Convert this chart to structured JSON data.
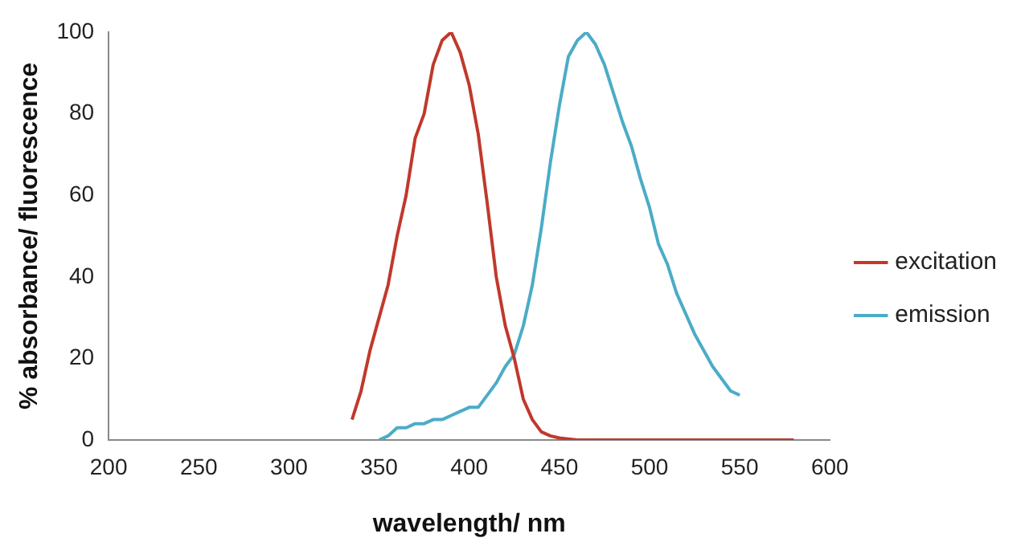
{
  "chart_data": {
    "type": "line",
    "xlabel": "wavelength/ nm",
    "ylabel": "% absorbance/ fluorescence",
    "xlim": [
      200,
      600
    ],
    "xticks": [
      200,
      250,
      300,
      350,
      400,
      450,
      500,
      550,
      600
    ],
    "ylim": [
      0,
      100
    ],
    "yticks": [
      0,
      20,
      40,
      60,
      80,
      100
    ],
    "grid": false,
    "legend": "right",
    "marker": "none",
    "line_style": "solid",
    "series": [
      {
        "name": "excitation",
        "color": "#c0392b",
        "x": [
          335,
          340,
          345,
          350,
          355,
          360,
          365,
          370,
          375,
          380,
          385,
          390,
          395,
          400,
          405,
          410,
          415,
          420,
          425,
          430,
          435,
          440,
          445,
          450,
          460,
          500,
          580
        ],
        "values": [
          5,
          12,
          22,
          30,
          38,
          50,
          60,
          74,
          80,
          92,
          98,
          100,
          95,
          87,
          75,
          58,
          40,
          28,
          20,
          10,
          5,
          2,
          1,
          0.5,
          0,
          0,
          0
        ]
      },
      {
        "name": "emission",
        "color": "#4bacc6",
        "x": [
          350,
          355,
          360,
          365,
          370,
          375,
          380,
          385,
          390,
          395,
          400,
          405,
          410,
          415,
          420,
          425,
          430,
          435,
          440,
          445,
          450,
          455,
          460,
          465,
          470,
          475,
          480,
          485,
          490,
          495,
          500,
          505,
          510,
          515,
          520,
          525,
          530,
          535,
          540,
          545,
          550
        ],
        "values": [
          0,
          1,
          3,
          3,
          4,
          4,
          5,
          5,
          6,
          7,
          8,
          8,
          11,
          14,
          18,
          21,
          28,
          38,
          52,
          68,
          82,
          94,
          98,
          100,
          97,
          92,
          85,
          78,
          72,
          64,
          57,
          48,
          43,
          36,
          31,
          26,
          22,
          18,
          15,
          12,
          11
        ]
      }
    ]
  }
}
